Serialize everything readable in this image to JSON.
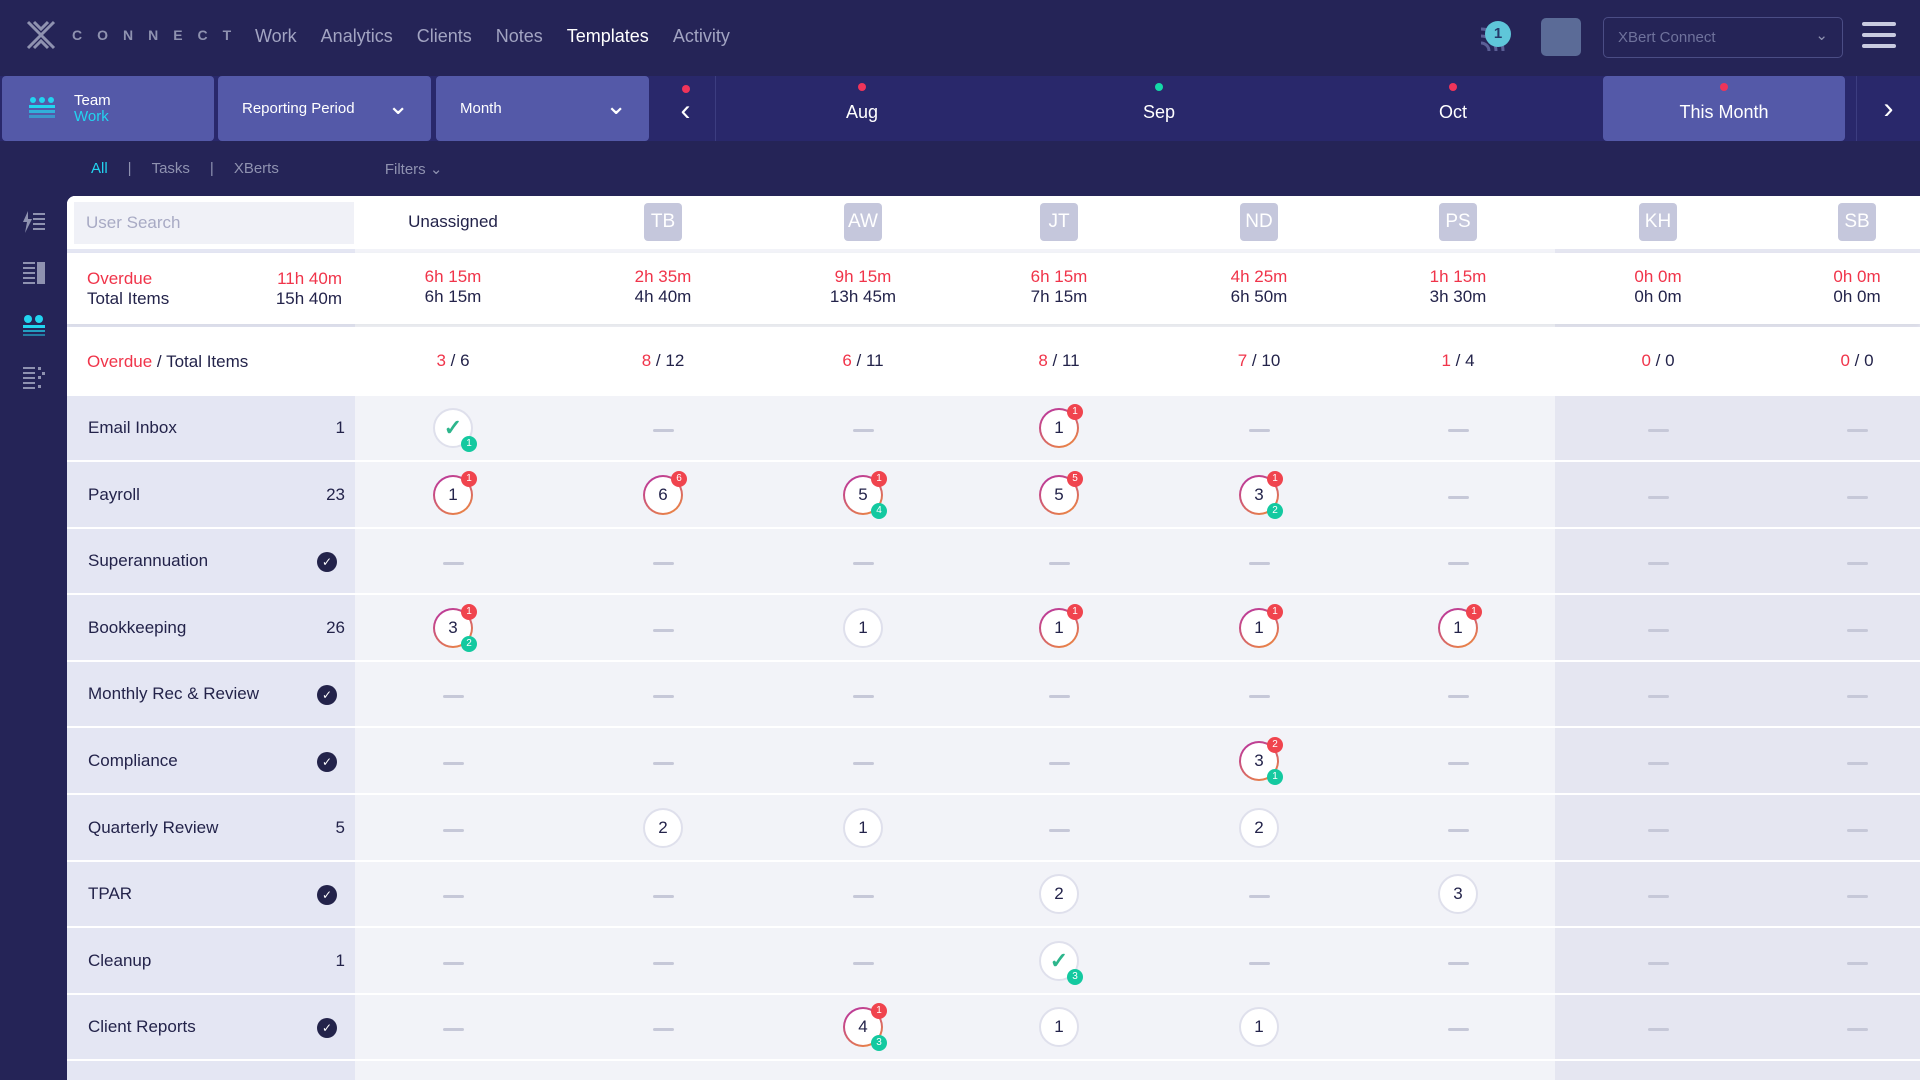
{
  "app": {
    "logo_text": "CONNECT",
    "org_select": "XBert Connect",
    "feed_count": "1"
  },
  "nav": [
    "Work",
    "Analytics",
    "Clients",
    "Notes",
    "Templates",
    "Activity"
  ],
  "nav_active": "Templates",
  "subbar": {
    "team_label": "Team",
    "team_sub": "Work",
    "reporting": "Reporting Period",
    "period": "Month",
    "months": [
      {
        "label": "Aug",
        "dot": "#f0345a"
      },
      {
        "label": "Sep",
        "dot": "#14d9a8"
      },
      {
        "label": "Oct",
        "dot": "#f0345a"
      },
      {
        "label": "This Month",
        "dot": "#f0345a"
      }
    ]
  },
  "filters": {
    "all": "All",
    "tasks": "Tasks",
    "xberts": "XBerts",
    "filters": "Filters",
    "sep": "|"
  },
  "table": {
    "search_placeholder": "User Search",
    "columns": [
      "Unassigned",
      "TB",
      "AW",
      "JT",
      "ND",
      "PS",
      "KH",
      "SB"
    ],
    "time_label_overdue": "Overdue",
    "time_label_total": "Total Items",
    "time_overdue_total": "11h 40m",
    "time_total_total": "15h 40m",
    "time_overdue": [
      "6h 15m",
      "2h 35m",
      "9h 15m",
      "6h 15m",
      "4h 25m",
      "1h 15m",
      "0h 0m",
      "0h 0m"
    ],
    "time_total": [
      "6h 15m",
      "4h 40m",
      "13h 45m",
      "7h 15m",
      "6h 50m",
      "3h 30m",
      "0h 0m",
      "0h 0m"
    ],
    "count_label_overdue": "Overdue",
    "count_label_rest": " / Total Items",
    "count_overdue": [
      "3",
      "8",
      "6",
      "8",
      "7",
      "1",
      "0",
      "0"
    ],
    "count_total": [
      "6",
      "12",
      "11",
      "11",
      "10",
      "4",
      "0",
      "0"
    ],
    "rows": [
      {
        "label": "Email Inbox",
        "count": "1",
        "cells": [
          {
            "t": "check",
            "g": "1"
          },
          {
            "t": "dash"
          },
          {
            "t": "dash"
          },
          {
            "t": "num",
            "v": "1",
            "r": "1"
          },
          {
            "t": "dash"
          },
          {
            "t": "dash"
          },
          {
            "t": "dash"
          },
          {
            "t": "dash"
          }
        ]
      },
      {
        "label": "Payroll",
        "count": "23",
        "cells": [
          {
            "t": "num",
            "v": "1",
            "r": "1"
          },
          {
            "t": "num",
            "v": "6",
            "r": "6"
          },
          {
            "t": "num",
            "v": "5",
            "r": "1",
            "g": "4"
          },
          {
            "t": "num",
            "v": "5",
            "r": "5"
          },
          {
            "t": "num",
            "v": "3",
            "r": "1",
            "g": "2"
          },
          {
            "t": "dash"
          },
          {
            "t": "dash"
          },
          {
            "t": "dash"
          }
        ]
      },
      {
        "label": "Superannuation",
        "done": true,
        "cells": [
          {
            "t": "dash"
          },
          {
            "t": "dash"
          },
          {
            "t": "dash"
          },
          {
            "t": "dash"
          },
          {
            "t": "dash"
          },
          {
            "t": "dash"
          },
          {
            "t": "dash"
          },
          {
            "t": "dash"
          }
        ]
      },
      {
        "label": "Bookkeeping",
        "count": "26",
        "cells": [
          {
            "t": "num",
            "v": "3",
            "r": "1",
            "g": "2"
          },
          {
            "t": "dash"
          },
          {
            "t": "num",
            "v": "1"
          },
          {
            "t": "num",
            "v": "1",
            "r": "1"
          },
          {
            "t": "num",
            "v": "1",
            "r": "1"
          },
          {
            "t": "num",
            "v": "1",
            "r": "1"
          },
          {
            "t": "dash"
          },
          {
            "t": "dash"
          }
        ]
      },
      {
        "label": "Monthly Rec & Review",
        "done": true,
        "cells": [
          {
            "t": "dash"
          },
          {
            "t": "dash"
          },
          {
            "t": "dash"
          },
          {
            "t": "dash"
          },
          {
            "t": "dash"
          },
          {
            "t": "dash"
          },
          {
            "t": "dash"
          },
          {
            "t": "dash"
          }
        ]
      },
      {
        "label": "Compliance",
        "done": true,
        "cells": [
          {
            "t": "dash"
          },
          {
            "t": "dash"
          },
          {
            "t": "dash"
          },
          {
            "t": "dash"
          },
          {
            "t": "num",
            "v": "3",
            "r": "2",
            "g": "1"
          },
          {
            "t": "dash"
          },
          {
            "t": "dash"
          },
          {
            "t": "dash"
          }
        ]
      },
      {
        "label": "Quarterly Review",
        "count": "5",
        "cells": [
          {
            "t": "dash"
          },
          {
            "t": "num",
            "v": "2"
          },
          {
            "t": "num",
            "v": "1"
          },
          {
            "t": "dash"
          },
          {
            "t": "num",
            "v": "2"
          },
          {
            "t": "dash"
          },
          {
            "t": "dash"
          },
          {
            "t": "dash"
          }
        ]
      },
      {
        "label": "TPAR",
        "done": true,
        "cells": [
          {
            "t": "dash"
          },
          {
            "t": "dash"
          },
          {
            "t": "dash"
          },
          {
            "t": "num",
            "v": "2"
          },
          {
            "t": "dash"
          },
          {
            "t": "num",
            "v": "3"
          },
          {
            "t": "dash"
          },
          {
            "t": "dash"
          }
        ]
      },
      {
        "label": "Cleanup",
        "count": "1",
        "cells": [
          {
            "t": "dash"
          },
          {
            "t": "dash"
          },
          {
            "t": "dash"
          },
          {
            "t": "check",
            "g": "3"
          },
          {
            "t": "dash"
          },
          {
            "t": "dash"
          },
          {
            "t": "dash"
          },
          {
            "t": "dash"
          }
        ]
      },
      {
        "label": "Client Reports",
        "done": true,
        "cells": [
          {
            "t": "dash"
          },
          {
            "t": "dash"
          },
          {
            "t": "num",
            "v": "4",
            "r": "1",
            "g": "3"
          },
          {
            "t": "num",
            "v": "1"
          },
          {
            "t": "num",
            "v": "1"
          },
          {
            "t": "dash"
          },
          {
            "t": "dash"
          },
          {
            "t": "dash"
          }
        ]
      }
    ]
  }
}
